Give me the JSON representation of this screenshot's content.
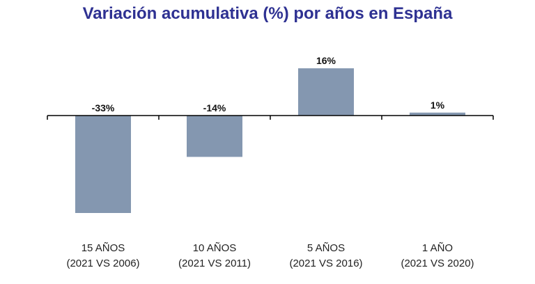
{
  "chart_data": {
    "type": "bar",
    "title": "Variación acumulativa (%) por años en España",
    "categories": [
      {
        "line1": "15 AÑOS",
        "line2": "(2021 VS 2006)"
      },
      {
        "line1": "10 AÑOS",
        "line2": "(2021 VS 2011)"
      },
      {
        "line1": "5 AÑOS",
        "line2": "(2021 VS 2016)"
      },
      {
        "line1": "1 AÑO",
        "line2": "(2021 VS 2020)"
      }
    ],
    "values": [
      -33,
      -14,
      16,
      1
    ],
    "data_labels": [
      "-33%",
      "-14%",
      "16%",
      "1%"
    ],
    "ylim": [
      -40,
      20
    ],
    "xlabel": "",
    "ylabel": "",
    "grid": false,
    "legend": "none",
    "colors": {
      "bar": "#8497b0",
      "title": "#2e3192",
      "axis": "#000000"
    }
  }
}
